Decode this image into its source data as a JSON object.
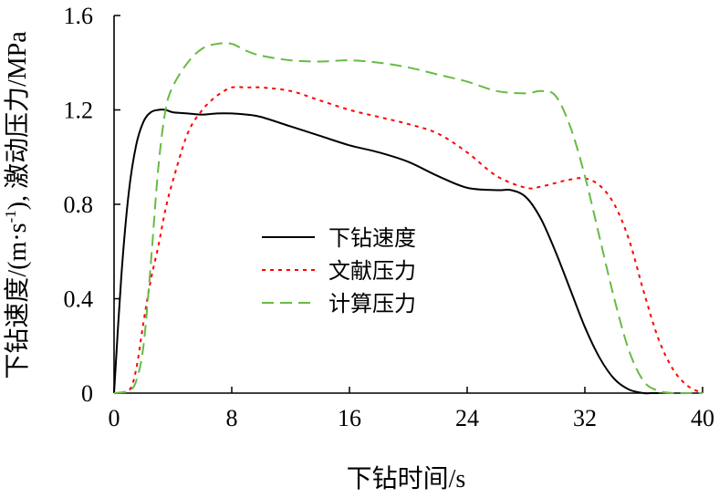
{
  "chart_data": {
    "type": "line",
    "title": "",
    "xlabel": "下钻时间/s",
    "ylabel_main": "下钻速度/(m·s",
    "ylabel_sup": "-1",
    "ylabel_rest": "), 激动压力/MPa",
    "xlim": [
      0,
      40
    ],
    "ylim": [
      0,
      1.6
    ],
    "x_ticks": [
      "0",
      "8",
      "16",
      "24",
      "32",
      "40"
    ],
    "y_ticks": [
      "0",
      "0.4",
      "0.8",
      "1.2",
      "1.6"
    ],
    "grid": false,
    "legend_position": "center-left",
    "series": [
      {
        "name": "下钻速度",
        "color": "#000000",
        "style": "solid",
        "x": [
          0,
          0.5,
          1,
          1.5,
          2,
          2.5,
          3,
          3.5,
          4,
          5,
          6,
          7,
          8,
          9,
          10,
          12,
          14,
          16,
          18,
          20,
          22,
          24,
          26,
          27,
          28,
          29,
          30,
          31,
          32,
          33,
          34,
          35,
          36,
          36.5,
          37
        ],
        "y": [
          0,
          0.5,
          0.85,
          1.05,
          1.15,
          1.19,
          1.2,
          1.2,
          1.19,
          1.185,
          1.18,
          1.185,
          1.185,
          1.18,
          1.17,
          1.13,
          1.09,
          1.05,
          1.02,
          0.98,
          0.92,
          0.87,
          0.86,
          0.86,
          0.83,
          0.74,
          0.6,
          0.44,
          0.28,
          0.15,
          0.06,
          0.015,
          0.0,
          0.0,
          0.0
        ]
      },
      {
        "name": "文献压力",
        "color": "#ff0000",
        "style": "dotted",
        "x": [
          0,
          1,
          1.5,
          2,
          2.5,
          3,
          3.5,
          4,
          5,
          6,
          7,
          8,
          9,
          10,
          12,
          14,
          16,
          18,
          20,
          22,
          24,
          26,
          28,
          29,
          30,
          31,
          32,
          33,
          34,
          35,
          36,
          37,
          38,
          39,
          40
        ],
        "y": [
          0,
          0.01,
          0.1,
          0.3,
          0.48,
          0.62,
          0.78,
          0.9,
          1.1,
          1.2,
          1.26,
          1.295,
          1.295,
          1.295,
          1.28,
          1.24,
          1.2,
          1.17,
          1.14,
          1.1,
          1.02,
          0.92,
          0.87,
          0.875,
          0.89,
          0.905,
          0.91,
          0.88,
          0.8,
          0.65,
          0.43,
          0.23,
          0.1,
          0.03,
          0.0
        ]
      },
      {
        "name": "计算压力",
        "color": "#66bb44",
        "style": "dashed",
        "x": [
          0,
          1,
          1.5,
          2,
          2.5,
          3,
          3.5,
          4,
          5,
          6,
          7,
          8,
          9,
          10,
          12,
          14,
          16,
          18,
          20,
          22,
          24,
          26,
          28,
          29,
          30,
          31,
          32,
          33,
          34,
          35,
          36,
          37,
          38,
          39,
          40
        ],
        "y": [
          0,
          0.01,
          0.05,
          0.2,
          0.55,
          0.95,
          1.2,
          1.3,
          1.4,
          1.46,
          1.48,
          1.48,
          1.45,
          1.43,
          1.41,
          1.405,
          1.41,
          1.4,
          1.38,
          1.35,
          1.32,
          1.28,
          1.27,
          1.28,
          1.26,
          1.13,
          0.92,
          0.66,
          0.4,
          0.18,
          0.05,
          0.01,
          0.0,
          0.0,
          0.0
        ]
      }
    ]
  }
}
